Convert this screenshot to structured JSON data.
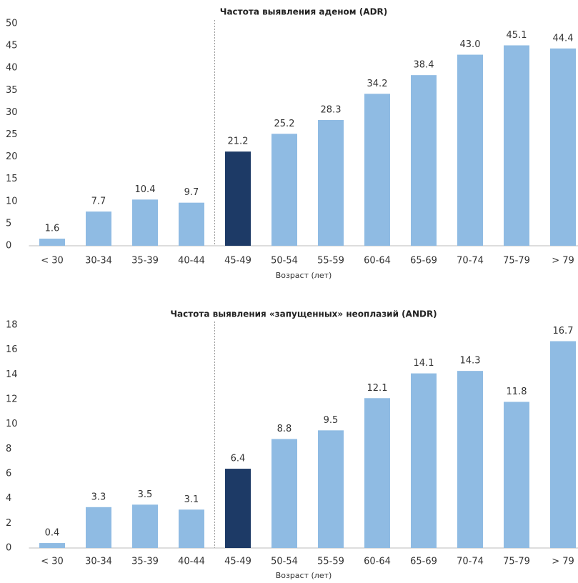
{
  "chart_data": [
    {
      "type": "bar",
      "title": "Частота выявления аденом (ADR)",
      "x_label": "Возраст (лет)",
      "categories": [
        "< 30",
        "30-34",
        "35-39",
        "40-44",
        "45-49",
        "50-54",
        "55-59",
        "60-64",
        "65-69",
        "70-74",
        "75-79",
        "> 79"
      ],
      "values": [
        1.6,
        7.7,
        10.4,
        9.7,
        21.2,
        25.2,
        28.3,
        34.2,
        38.4,
        43.0,
        45.1,
        44.4
      ],
      "value_labels": [
        "1.6",
        "7.7",
        "10.4",
        "9.7",
        "21.2",
        "25.2",
        "28.3",
        "34.2",
        "38.4",
        "43.0",
        "45.1",
        "44.4"
      ],
      "colors": [
        "#8fbbe3",
        "#8fbbe3",
        "#8fbbe3",
        "#8fbbe3",
        "#1d3a66",
        "#8fbbe3",
        "#8fbbe3",
        "#8fbbe3",
        "#8fbbe3",
        "#8fbbe3",
        "#8fbbe3",
        "#8fbbe3"
      ],
      "ylim": [
        0,
        50
      ],
      "yticks": [
        0,
        5,
        10,
        15,
        20,
        25,
        30,
        35,
        40,
        45,
        50
      ],
      "grid": false
    },
    {
      "type": "bar",
      "title": "Частота выявления «запущенных» неоплазий (ANDR)",
      "x_label": "Возраст (лет)",
      "categories": [
        "< 30",
        "30-34",
        "35-39",
        "40-44",
        "45-49",
        "50-54",
        "55-59",
        "60-64",
        "65-69",
        "70-74",
        "75-79",
        "> 79"
      ],
      "values": [
        0.4,
        3.3,
        3.5,
        3.1,
        6.4,
        8.8,
        9.5,
        12.1,
        14.1,
        14.3,
        11.8,
        16.7
      ],
      "colors": [
        "#8fbbe3",
        "#8fbbe3",
        "#8fbbe3",
        "#8fbbe3",
        "#1d3a66",
        "#8fbbe3",
        "#8fbbe3",
        "#8fbbe3",
        "#8fbbe3",
        "#8fbbe3",
        "#8fbbe3",
        "#8fbbe3"
      ],
      "ylim": [
        0,
        18
      ],
      "yticks": [
        0,
        2,
        4,
        6,
        8,
        10,
        12,
        14,
        16,
        18
      ],
      "grid": false
    }
  ]
}
